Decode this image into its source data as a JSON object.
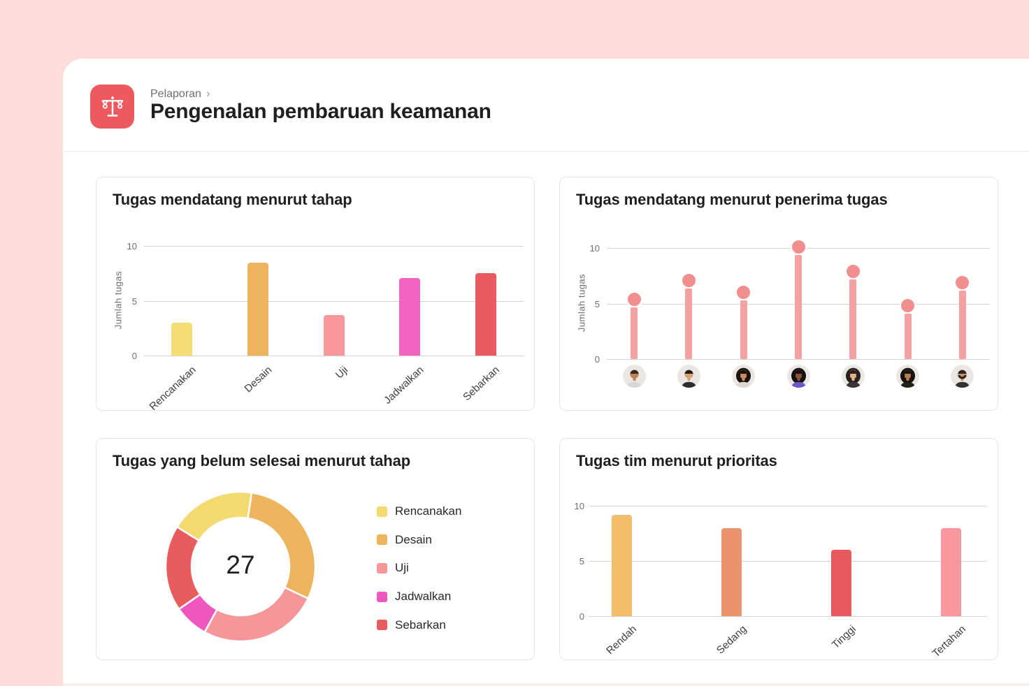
{
  "page": {
    "background_color": "#FBDCDA",
    "card_color": "#FFFFFF"
  },
  "header": {
    "icon": "balance-scale-icon",
    "icon_bg_color": "#EC5A5F",
    "breadcrumb": "Pelaporan",
    "breadcrumb_chevron": "›",
    "title": "Pengenalan pembaruan keamanan"
  },
  "chart_data": [
    {
      "id": "tugas-mendatang-menurut-tahap",
      "type": "bar",
      "title": "Tugas mendatang menurut tahap",
      "xlabel": "",
      "ylabel": "Jumlah tugas",
      "ylim": [
        0,
        10
      ],
      "yticks": [
        0,
        5,
        10
      ],
      "grid": true,
      "categories": [
        "Rencanakan",
        "Desain",
        "Uji",
        "Jadwalkan",
        "Sebarkan"
      ],
      "values": [
        3.0,
        8.5,
        3.7,
        7.1,
        7.5
      ],
      "bar_colors": [
        "#F4DE74",
        "#EDB45F",
        "#F8989B",
        "#F064BF",
        "#EA5A60"
      ]
    },
    {
      "id": "tugas-mendatang-menurut-penerima-tugas",
      "type": "lollipop",
      "title": "Tugas mendatang menurut penerima tugas",
      "xlabel": "",
      "ylabel": "Jumlah tugas",
      "ylim": [
        0,
        10
      ],
      "yticks": [
        0,
        5,
        10
      ],
      "grid": true,
      "categories": [
        "avatar-man-short-hair",
        "avatar-man-black-shirt",
        "avatar-woman-long-hair",
        "avatar-woman-purple-top",
        "avatar-woman-dark-top",
        "avatar-woman-black-top",
        "avatar-man-beard"
      ],
      "values": [
        5.4,
        7.1,
        6.0,
        10.1,
        7.9,
        4.8,
        6.9
      ],
      "stem_color": "#F5A0A1",
      "dot_color": "#F18F8E",
      "avatars": [
        {
          "icon": "avatar-man-short-hair",
          "style": "man",
          "skin": "#C18355",
          "hair": "#332A21",
          "shirt": "#D9D7D4",
          "beard": false
        },
        {
          "icon": "avatar-man-black-shirt",
          "style": "man",
          "skin": "#D7A476",
          "hair": "#221D18",
          "shirt": "#2F2D2B",
          "beard": false
        },
        {
          "icon": "avatar-woman-long-hair",
          "style": "woman",
          "skin": "#C98B5F",
          "hair": "#1B1512",
          "shirt": "#DDD8D2",
          "beard": false
        },
        {
          "icon": "avatar-woman-purple-top",
          "style": "woman",
          "skin": "#8A5538",
          "hair": "#161210",
          "shirt": "#6E55C8",
          "beard": false
        },
        {
          "icon": "avatar-woman-dark-top",
          "style": "woman",
          "skin": "#E2B28F",
          "hair": "#2A211C",
          "shirt": "#3B3436",
          "beard": false
        },
        {
          "icon": "avatar-woman-black-top",
          "style": "woman",
          "skin": "#B67E50",
          "hair": "#171310",
          "shirt": "#232019",
          "beard": false
        },
        {
          "icon": "avatar-man-beard",
          "style": "man",
          "skin": "#C89266",
          "hair": "#2E2620",
          "shirt": "#35312E",
          "beard": true
        }
      ]
    },
    {
      "id": "tugas-yang-belum-selesai-menurut-tahap",
      "type": "donut",
      "title": "Tugas yang belum selesai menurut tahap",
      "center_label": "27",
      "total": 27,
      "legend_position": "right",
      "segments": [
        {
          "label": "Rencanakan",
          "value": 5,
          "color": "#F3DA6E"
        },
        {
          "label": "Desain",
          "value": 8,
          "color": "#ECB45D"
        },
        {
          "label": "Uji",
          "value": 7,
          "color": "#F59698"
        },
        {
          "label": "Jadwalkan",
          "value": 2,
          "color": "#EE58BE"
        },
        {
          "label": "Sebarkan",
          "value": 5,
          "color": "#E85C5D"
        }
      ]
    },
    {
      "id": "tugas-tim-menurut-prioritas",
      "type": "bar",
      "title": "Tugas tim menurut prioritas",
      "xlabel": "",
      "ylabel": "",
      "ylim": [
        0,
        10
      ],
      "yticks": [
        0,
        5,
        10
      ],
      "grid": true,
      "categories": [
        "Rendah",
        "Sedang",
        "Tinggi",
        "Tertahan"
      ],
      "values": [
        9.2,
        8.0,
        6.0,
        8.0
      ],
      "bar_colors": [
        "#F2BE6B",
        "#E9946F",
        "#E8595F",
        "#F8979D"
      ]
    }
  ]
}
